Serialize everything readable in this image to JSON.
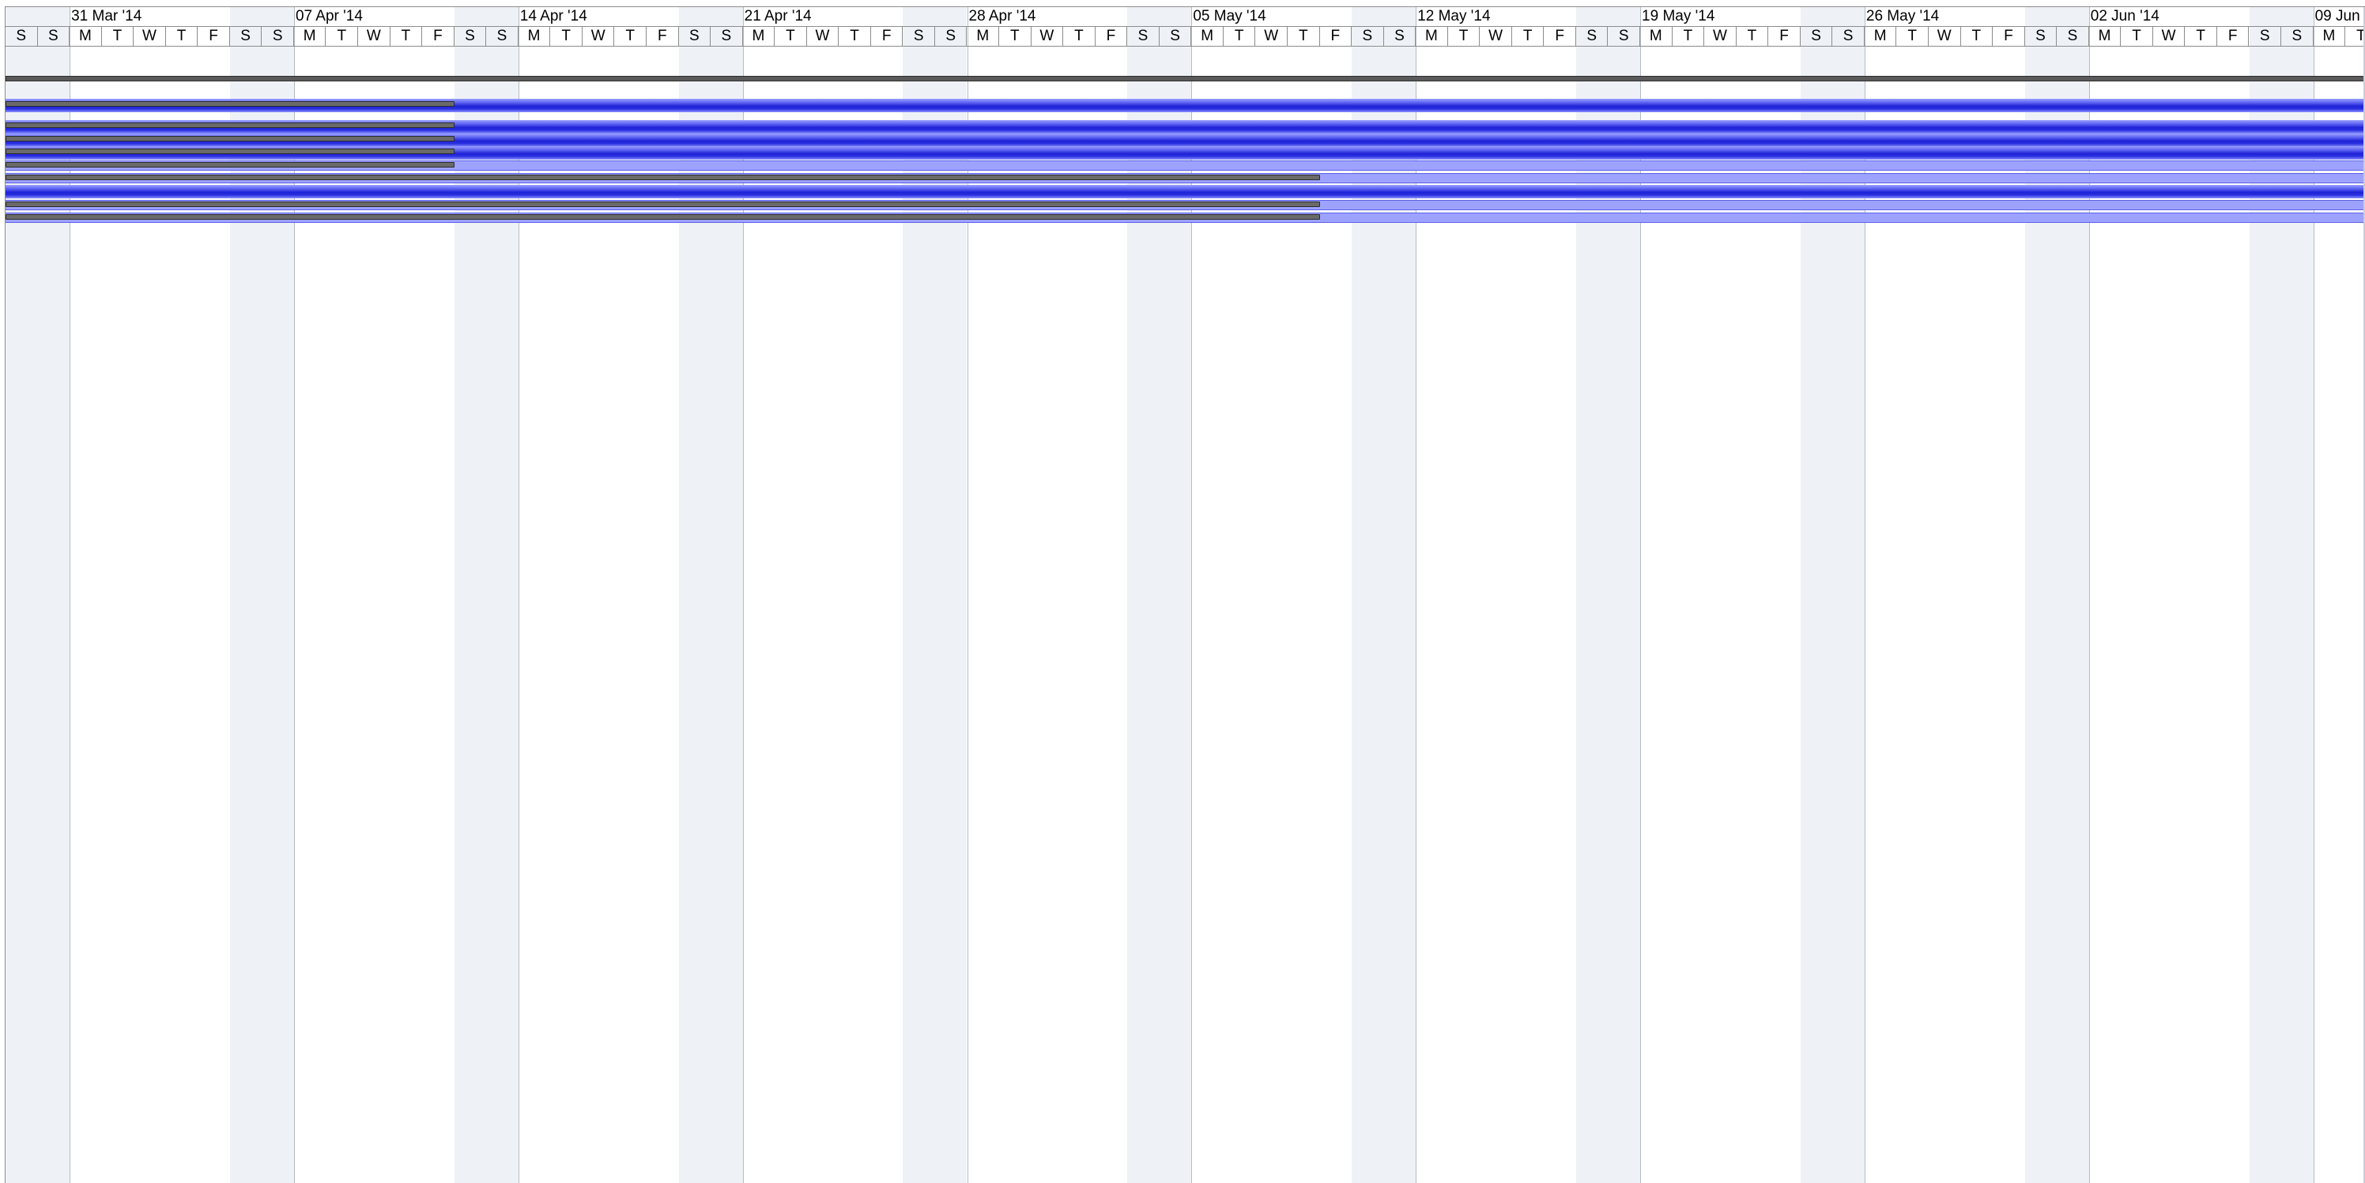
{
  "chart_data": {
    "type": "gantt",
    "timescale": {
      "first_day": "2014-03-29",
      "weeks": [
        {
          "label": "31 Mar '14"
        },
        {
          "label": "07 Apr '14"
        },
        {
          "label": "14 Apr '14"
        },
        {
          "label": "21 Apr '14"
        },
        {
          "label": "28 Apr '14"
        },
        {
          "label": "05 May '14"
        },
        {
          "label": "12 May '14"
        },
        {
          "label": "19 May '14"
        },
        {
          "label": "26 May '14"
        },
        {
          "label": "02 Jun '14"
        },
        {
          "label": "09 Jun '14"
        }
      ],
      "lead_days": [
        "S",
        "S"
      ],
      "week_days": [
        "M",
        "T",
        "W",
        "T",
        "F",
        "S",
        "S"
      ]
    },
    "rows": [
      {
        "kind": "summary",
        "start": "2014-03-29",
        "end": "2014-06-10"
      },
      {
        "kind": "task",
        "style": "dark",
        "start": "2014-03-29",
        "end": "2014-06-10",
        "progress_end": "2014-04-11"
      },
      {
        "kind": "task",
        "style": "dark",
        "start": "2014-03-29",
        "end": "2014-06-10",
        "progress_end": "2014-04-11"
      },
      {
        "kind": "task",
        "style": "dark",
        "start": "2014-03-29",
        "end": "2014-06-10",
        "progress_end": "2014-04-11"
      },
      {
        "kind": "task",
        "style": "dark",
        "start": "2014-03-29",
        "end": "2014-06-10",
        "progress_end": "2014-04-11"
      },
      {
        "kind": "task",
        "style": "light",
        "start": "2014-03-29",
        "end": "2014-06-10",
        "progress_end": "2014-04-11"
      },
      {
        "kind": "task",
        "style": "light",
        "start": "2014-03-29",
        "end": "2014-06-10",
        "progress_end": "2014-05-08"
      },
      {
        "kind": "task",
        "style": "dark",
        "start": "2014-03-29",
        "end": "2014-06-10"
      },
      {
        "kind": "task",
        "style": "light",
        "start": "2014-03-29",
        "end": "2014-06-10",
        "progress_end": "2014-05-08"
      },
      {
        "kind": "task",
        "style": "light",
        "start": "2014-03-29",
        "end": "2014-06-10",
        "progress_end": "2014-05-08"
      }
    ],
    "colors": {
      "task_dark": "#2228d8",
      "task_light": "#9ea2ff",
      "progress": "#6a6a6a",
      "summary": "#5a5a5a",
      "weekend": "#eef1f6"
    }
  }
}
